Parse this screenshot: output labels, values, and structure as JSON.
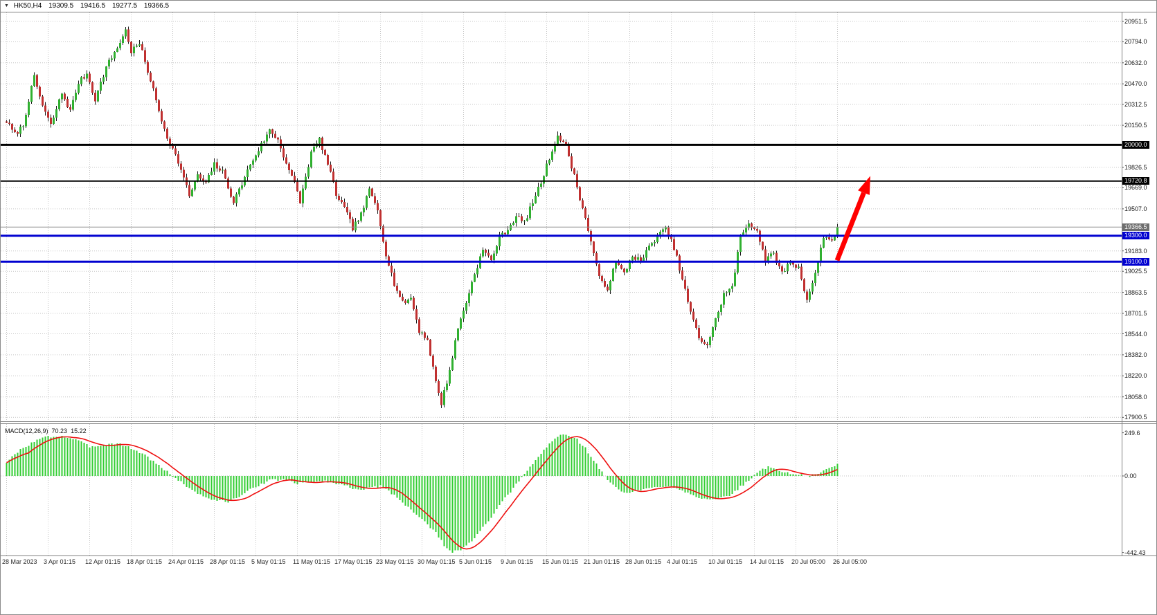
{
  "symbol_bar": {
    "dropdown_icon": "▼",
    "symbol_timeframe": "HK50,H4",
    "open": "19309.5",
    "high": "19416.5",
    "low": "19277.5",
    "close": "19366.5"
  },
  "chart_data": [
    {
      "type": "candlestick",
      "title": "HK50,H4",
      "symbol": "HK50",
      "timeframe": "H4",
      "bar_count": 301,
      "bars_per_label": 15,
      "x_labels": [
        "28 Mar 2023",
        "3 Apr 01:15",
        "12 Apr 01:15",
        "18 Apr 01:15",
        "24 Apr 01:15",
        "28 Apr 01:15",
        "5 May 01:15",
        "11 May 01:15",
        "17 May 01:15",
        "23 May 01:15",
        "30 May 01:15",
        "5 Jun 01:15",
        "9 Jun 01:15",
        "15 Jun 01:15",
        "21 Jun 01:15",
        "28 Jun 01:15",
        "4 Jul 01:15",
        "10 Jul 01:15",
        "14 Jul 01:15",
        "20 Jul 05:00",
        "26 Jul 05:00"
      ],
      "ylim": [
        17870,
        21020
      ],
      "price_axis_ticks": [
        20951.5,
        20794.0,
        20632.0,
        20470.0,
        20312.5,
        20150.5,
        19826.5,
        19669.0,
        19507.0,
        19183.0,
        19025.5,
        18863.5,
        18701.5,
        18544.0,
        18382.0,
        18220.0,
        18058.0,
        17900.5
      ],
      "price_anchors": [
        [
          0,
          20180
        ],
        [
          3,
          20080
        ],
        [
          6,
          20150
        ],
        [
          8,
          20350
        ],
        [
          10,
          20520
        ],
        [
          13,
          20300
        ],
        [
          16,
          20150
        ],
        [
          20,
          20400
        ],
        [
          23,
          20260
        ],
        [
          26,
          20480
        ],
        [
          29,
          20550
        ],
        [
          32,
          20350
        ],
        [
          36,
          20600
        ],
        [
          40,
          20750
        ],
        [
          43,
          20880
        ],
        [
          45,
          20720
        ],
        [
          48,
          20780
        ],
        [
          52,
          20500
        ],
        [
          55,
          20260
        ],
        [
          58,
          20060
        ],
        [
          62,
          19870
        ],
        [
          66,
          19610
        ],
        [
          69,
          19760
        ],
        [
          72,
          19700
        ],
        [
          75,
          19850
        ],
        [
          78,
          19790
        ],
        [
          82,
          19560
        ],
        [
          85,
          19700
        ],
        [
          88,
          19850
        ],
        [
          92,
          20000
        ],
        [
          95,
          20110
        ],
        [
          98,
          20040
        ],
        [
          101,
          19860
        ],
        [
          104,
          19700
        ],
        [
          106,
          19560
        ],
        [
          110,
          19940
        ],
        [
          113,
          20040
        ],
        [
          116,
          19850
        ],
        [
          119,
          19620
        ],
        [
          122,
          19510
        ],
        [
          125,
          19360
        ],
        [
          128,
          19460
        ],
        [
          131,
          19650
        ],
        [
          134,
          19500
        ],
        [
          137,
          19160
        ],
        [
          140,
          18930
        ],
        [
          143,
          18780
        ],
        [
          146,
          18820
        ],
        [
          149,
          18570
        ],
        [
          152,
          18500
        ],
        [
          155,
          18170
        ],
        [
          157,
          18010
        ],
        [
          160,
          18260
        ],
        [
          163,
          18590
        ],
        [
          166,
          18790
        ],
        [
          169,
          19010
        ],
        [
          172,
          19190
        ],
        [
          175,
          19110
        ],
        [
          178,
          19290
        ],
        [
          181,
          19350
        ],
        [
          184,
          19450
        ],
        [
          187,
          19400
        ],
        [
          190,
          19560
        ],
        [
          193,
          19710
        ],
        [
          196,
          19900
        ],
        [
          199,
          20070
        ],
        [
          202,
          19990
        ],
        [
          205,
          19760
        ],
        [
          208,
          19510
        ],
        [
          211,
          19260
        ],
        [
          214,
          18970
        ],
        [
          217,
          18900
        ],
        [
          220,
          19090
        ],
        [
          223,
          19010
        ],
        [
          226,
          19150
        ],
        [
          229,
          19100
        ],
        [
          232,
          19210
        ],
        [
          235,
          19300
        ],
        [
          238,
          19350
        ],
        [
          241,
          19210
        ],
        [
          244,
          18960
        ],
        [
          247,
          18710
        ],
        [
          250,
          18510
        ],
        [
          253,
          18460
        ],
        [
          256,
          18650
        ],
        [
          259,
          18850
        ],
        [
          262,
          18900
        ],
        [
          265,
          19290
        ],
        [
          268,
          19400
        ],
        [
          271,
          19340
        ],
        [
          274,
          19110
        ],
        [
          277,
          19160
        ],
        [
          280,
          19010
        ],
        [
          283,
          19100
        ],
        [
          286,
          19050
        ],
        [
          289,
          18810
        ],
        [
          292,
          19000
        ],
        [
          295,
          19300
        ],
        [
          298,
          19260
        ],
        [
          300,
          19360
        ]
      ],
      "hlines": [
        {
          "price": 20000.0,
          "label": "20000.0",
          "color": "#000000",
          "width": 3
        },
        {
          "price": 19720.8,
          "label": "19720.8",
          "color": "#000000",
          "width": 2
        },
        {
          "price": 19300.0,
          "label": "19300.0",
          "color": "#0000d0",
          "width": 3
        },
        {
          "price": 19100.0,
          "label": "19100.0",
          "color": "#0000d0",
          "width": 3
        }
      ],
      "last_price": {
        "value": 19366.5,
        "label": "19366.5",
        "box_color": "#6e6e6e",
        "line_color": "#909090"
      },
      "annotations": [
        {
          "type": "arrow",
          "from_bar": 300,
          "from_price": 19110,
          "to_bar": 312,
          "to_price": 19760,
          "color": "#ff0000"
        }
      ],
      "colors": {
        "up": "#30b030",
        "down": "#c03030",
        "wick": "#1a1a1a",
        "grid": "#c6c6c6",
        "background": "#ffffff"
      }
    },
    {
      "type": "macd_indicator",
      "label": "MACD(12,26,9)",
      "main_value_label": "70.23",
      "signal_value_label": "15.22",
      "axis_ticks": [
        {
          "value": 249.6,
          "label": "249.6"
        },
        {
          "value": 0,
          "label": "0.00"
        },
        {
          "value": -442.43,
          "label": "-442.43"
        }
      ],
      "ylim": [
        -460,
        300
      ],
      "signal_period": 9,
      "anchors": [
        [
          0,
          80
        ],
        [
          5,
          150
        ],
        [
          10,
          200
        ],
        [
          14,
          225
        ],
        [
          20,
          230
        ],
        [
          25,
          210
        ],
        [
          30,
          170
        ],
        [
          35,
          180
        ],
        [
          40,
          190
        ],
        [
          45,
          160
        ],
        [
          50,
          120
        ],
        [
          55,
          60
        ],
        [
          60,
          0
        ],
        [
          65,
          -60
        ],
        [
          70,
          -110
        ],
        [
          75,
          -140
        ],
        [
          80,
          -150
        ],
        [
          85,
          -110
        ],
        [
          90,
          -60
        ],
        [
          95,
          -25
        ],
        [
          100,
          -20
        ],
        [
          105,
          -45
        ],
        [
          110,
          -35
        ],
        [
          115,
          -30
        ],
        [
          120,
          -45
        ],
        [
          125,
          -70
        ],
        [
          130,
          -75
        ],
        [
          135,
          -60
        ],
        [
          140,
          -110
        ],
        [
          145,
          -180
        ],
        [
          150,
          -250
        ],
        [
          155,
          -330
        ],
        [
          158,
          -400
        ],
        [
          161,
          -440
        ],
        [
          164,
          -430
        ],
        [
          167,
          -390
        ],
        [
          170,
          -340
        ],
        [
          173,
          -280
        ],
        [
          176,
          -220
        ],
        [
          179,
          -150
        ],
        [
          182,
          -90
        ],
        [
          185,
          -30
        ],
        [
          188,
          30
        ],
        [
          191,
          90
        ],
        [
          194,
          150
        ],
        [
          197,
          200
        ],
        [
          200,
          240
        ],
        [
          203,
          235
        ],
        [
          206,
          210
        ],
        [
          209,
          160
        ],
        [
          212,
          90
        ],
        [
          215,
          20
        ],
        [
          218,
          -40
        ],
        [
          221,
          -80
        ],
        [
          224,
          -100
        ],
        [
          227,
          -90
        ],
        [
          230,
          -80
        ],
        [
          233,
          -70
        ],
        [
          236,
          -60
        ],
        [
          239,
          -55
        ],
        [
          242,
          -70
        ],
        [
          245,
          -90
        ],
        [
          248,
          -110
        ],
        [
          251,
          -130
        ],
        [
          254,
          -140
        ],
        [
          257,
          -135
        ],
        [
          260,
          -120
        ],
        [
          263,
          -90
        ],
        [
          266,
          -50
        ],
        [
          269,
          -10
        ],
        [
          272,
          30
        ],
        [
          275,
          50
        ],
        [
          278,
          40
        ],
        [
          281,
          20
        ],
        [
          284,
          10
        ],
        [
          287,
          5
        ],
        [
          290,
          0
        ],
        [
          293,
          10
        ],
        [
          296,
          40
        ],
        [
          300,
          70.23
        ]
      ],
      "colors": {
        "histogram": "#32cd32",
        "signal": "#ee1111"
      }
    }
  ]
}
